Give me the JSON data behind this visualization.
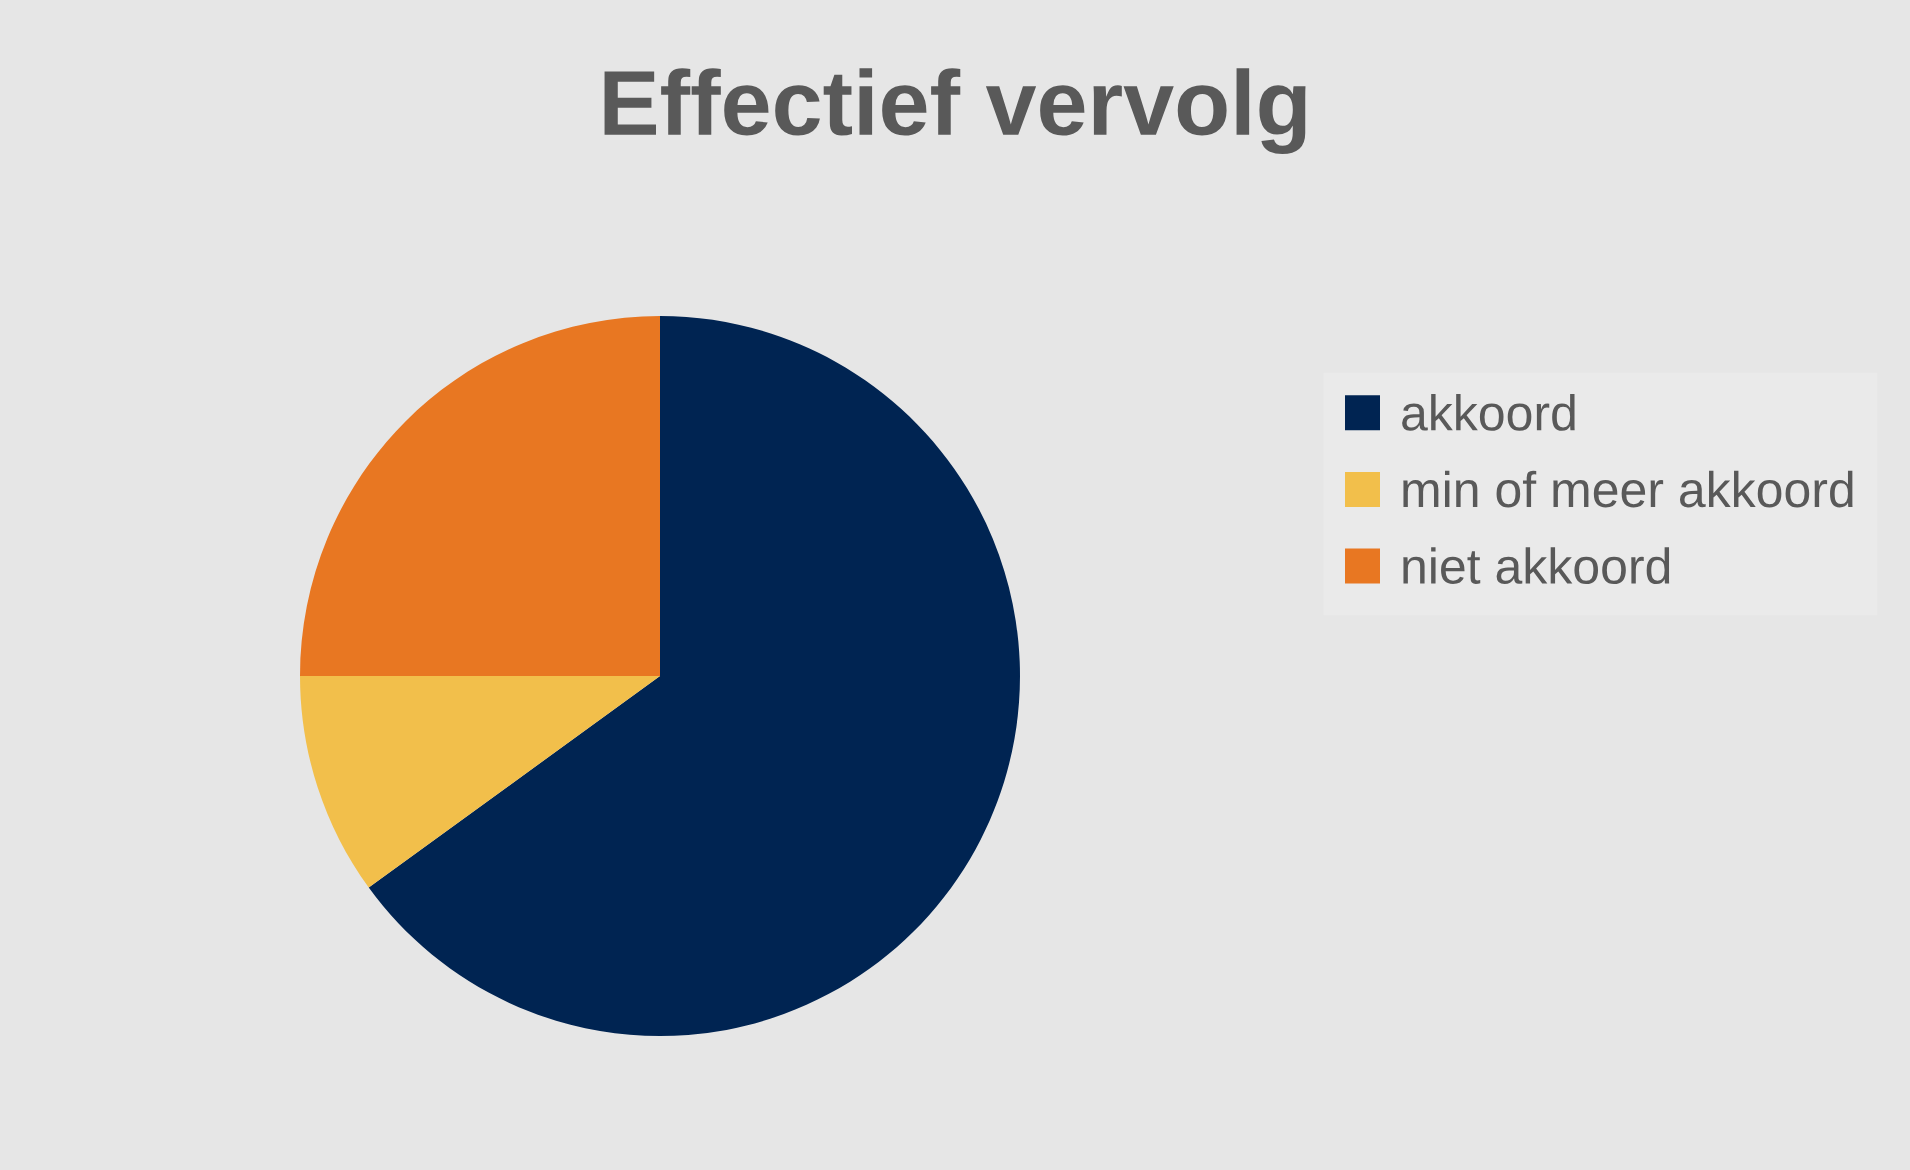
{
  "chart_data": {
    "type": "pie",
    "title": "Effectief vervolg",
    "categories": [
      "akkoord",
      "min of meer akkoord",
      "niet akkoord"
    ],
    "values": [
      65,
      10,
      25
    ],
    "colors": [
      "#002452",
      "#f2bf4b",
      "#e87722"
    ],
    "legend": "right"
  }
}
